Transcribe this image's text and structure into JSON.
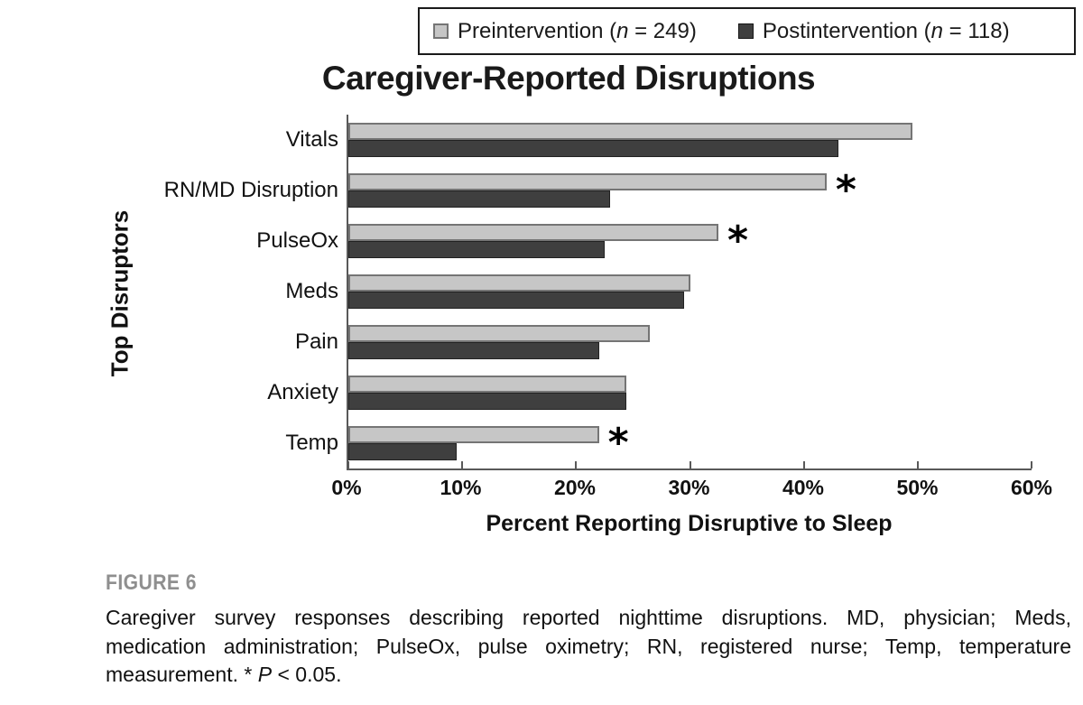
{
  "legend": {
    "pre": {
      "prefix": "Preintervention (",
      "n": "n",
      "suffix": " = 249)"
    },
    "post": {
      "prefix": "Postintervention (",
      "n": "n",
      "suffix": " = 118)"
    }
  },
  "chart_data": {
    "type": "bar",
    "orientation": "horizontal",
    "title": "Caregiver-Reported Disruptions",
    "ylabel": "Top Disruptors",
    "xlabel": "Percent Reporting Disruptive to Sleep",
    "xlim": [
      0,
      60
    ],
    "x_ticks": [
      "0%",
      "10%",
      "20%",
      "30%",
      "40%",
      "50%",
      "60%"
    ],
    "grid": false,
    "legend_position": "top",
    "categories": [
      "Vitals",
      "RN/MD Disruption",
      "PulseOx",
      "Meds",
      "Pain",
      "Anxiety",
      "Temp"
    ],
    "series": [
      {
        "name": "Preintervention (n = 249)",
        "color": "#c6c6c6",
        "values": [
          49.5,
          42,
          32.5,
          30,
          26.5,
          24.4,
          22
        ]
      },
      {
        "name": "Postintervention (n = 118)",
        "color": "#3f3f3f",
        "values": [
          43,
          23,
          22.5,
          29.5,
          22,
          24.4,
          9.5
        ]
      }
    ],
    "significance_marker": "*",
    "stars": [
      false,
      true,
      true,
      false,
      false,
      false,
      true
    ],
    "significance_note": "* P < 0.05 (RN/MD Disruption, PulseOx, Temp preintervention bars)"
  },
  "caption": {
    "label": "FIGURE 6",
    "lines": [
      "Caregiver survey responses describing reported nighttime disruptions. MD, physician; Meds,",
      "medication administration; PulseOx, pulse oximetry; RN, registered nurse; Temp, temperature"
    ],
    "last_line": {
      "text1": "measurement. * ",
      "italic": "P",
      "text2": " < 0.05."
    }
  },
  "colors": {
    "pre_fill": "#c6c6c6",
    "pre_border": "#757575",
    "post_fill": "#3f3f3f",
    "axis": "#595959",
    "figure_label_gray": "#8f8f8f"
  }
}
